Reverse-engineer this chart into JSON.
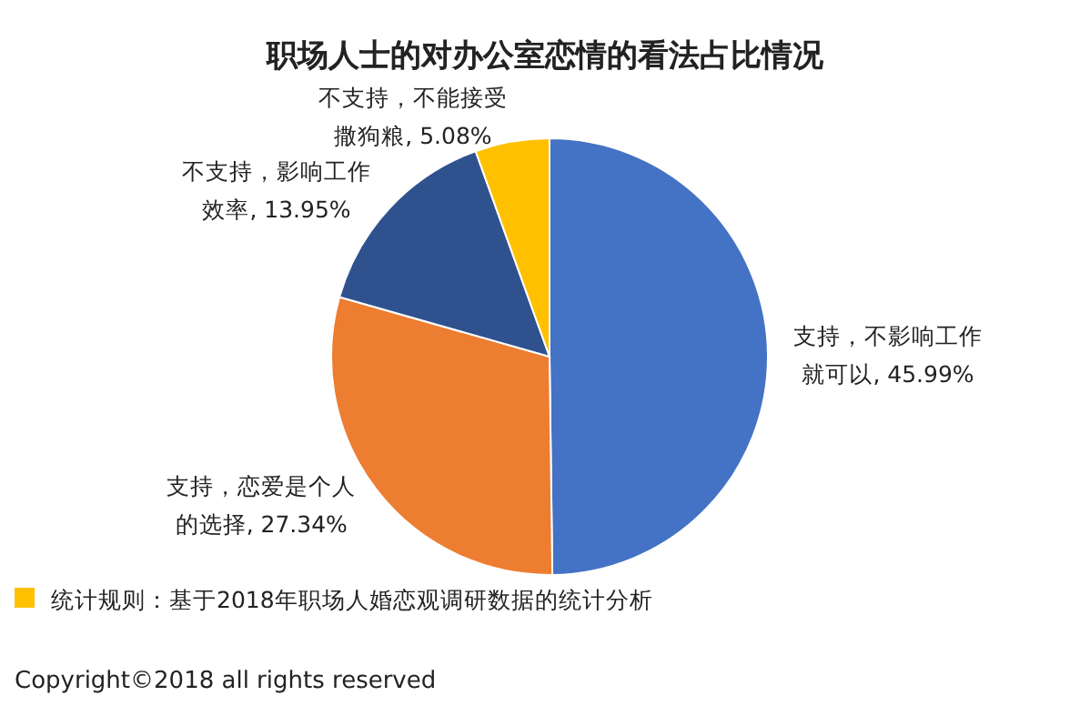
{
  "chart_data": {
    "type": "pie",
    "title": "职场人士的对办公室恋情的看法占比情况",
    "categories": [
      "支持，不影响工作就可以",
      "支持，恋爱是个人的选择",
      "不支持，影响工作效率",
      "不支持，不能接受撒狗粮"
    ],
    "values": [
      45.99,
      27.34,
      13.95,
      5.08
    ],
    "colors": [
      "#4472c4",
      "#ed7d31",
      "#2f528f",
      "#ffc000"
    ],
    "value_labels": [
      ", 45.99%",
      ", 27.34%",
      ", 13.95%",
      ", 5.08%"
    ],
    "annotations": [
      "统计规则：基于2018年职场人婚恋观调研数据的统计分析",
      "Copyright©2018 all rights reserved"
    ]
  }
}
